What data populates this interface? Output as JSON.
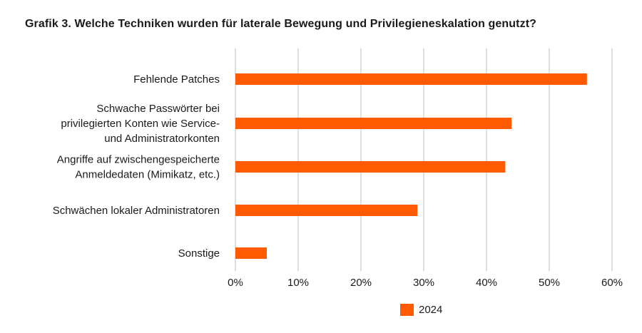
{
  "title": "Grafik 3. Welche Techniken wurden für laterale Bewegung und Privilegieneskalation genutzt?",
  "chart_data": {
    "type": "bar",
    "orientation": "horizontal",
    "categories": [
      [
        "Fehlende Patches"
      ],
      [
        "Schwache Passwörter bei",
        "privilegierten Konten wie Service-",
        "und Administratorkonten"
      ],
      [
        "Angriffe auf zwischengespeicherte",
        "Anmeldedaten (Mimikatz, etc.)"
      ],
      [
        "Schwächen lokaler Administratoren"
      ],
      [
        "Sonstige"
      ]
    ],
    "series": [
      {
        "name": "2024",
        "color": "#ff5a00",
        "values": [
          56,
          44,
          43,
          29,
          5
        ]
      }
    ],
    "xlim": [
      0,
      60
    ],
    "xticks": [
      0,
      10,
      20,
      30,
      40,
      50,
      60
    ],
    "xtick_labels": [
      "0%",
      "10%",
      "20%",
      "30%",
      "40%",
      "50%",
      "60%"
    ],
    "value_unit": "%",
    "grid": "vertical",
    "legend_position": "bottom"
  }
}
